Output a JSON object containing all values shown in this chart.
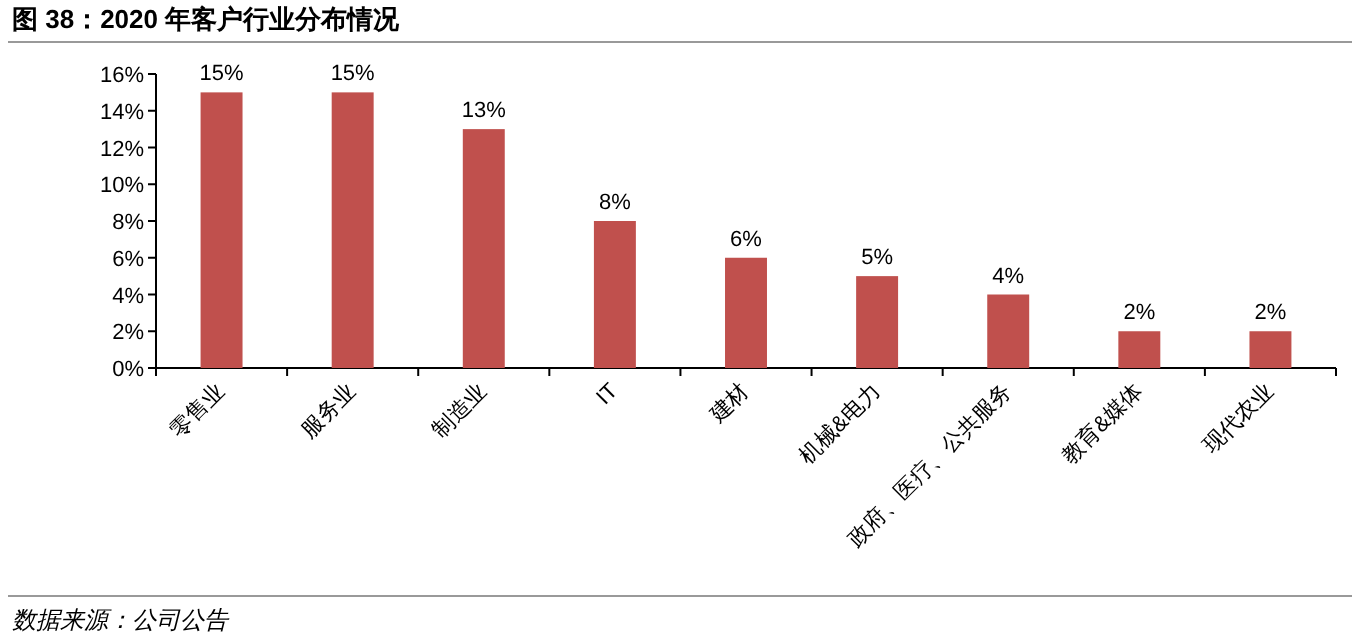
{
  "chart_data": {
    "type": "bar",
    "title": "图 38：2020 年客户行业分布情况",
    "categories": [
      "零售业",
      "服务业",
      "制造业",
      "IT",
      "建材",
      "机械&电力",
      "政府、医疗、公共服务",
      "教育&媒体",
      "现代农业"
    ],
    "values": [
      15,
      15,
      13,
      8,
      6,
      5,
      4,
      2,
      2
    ],
    "value_labels": [
      "15%",
      "15%",
      "13%",
      "8%",
      "6%",
      "5%",
      "4%",
      "2%",
      "2%"
    ],
    "color": "#c0504d",
    "ylim": [
      0,
      16
    ],
    "yticks": [
      {
        "value": 0,
        "label": "0%"
      },
      {
        "value": 2,
        "label": "2%"
      },
      {
        "value": 4,
        "label": "4%"
      },
      {
        "value": 6,
        "label": "6%"
      },
      {
        "value": 8,
        "label": "8%"
      },
      {
        "value": 10,
        "label": "10%"
      },
      {
        "value": 12,
        "label": "12%"
      },
      {
        "value": 14,
        "label": "14%"
      },
      {
        "value": 16,
        "label": "16%"
      }
    ],
    "grid": false,
    "annotations": [
      "数据来源：公司公告"
    ]
  }
}
